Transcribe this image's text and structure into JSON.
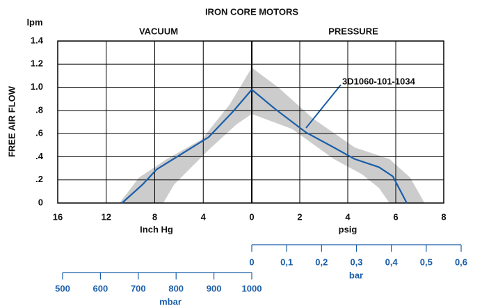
{
  "title": "IRON CORE MOTORS",
  "ylabel": "FREE AIR FLOW",
  "yunit": "lpm",
  "chart_data": [
    {
      "type": "line",
      "title": "VACUUM",
      "xlabel": "Inch Hg",
      "xlim": [
        16,
        0
      ],
      "xticks": [
        16,
        12,
        8,
        4,
        0
      ],
      "ylim": [
        0,
        1.4
      ],
      "yticks": [
        0,
        {
          "value": 0.2,
          "label": ".2"
        },
        {
          "value": 0.4,
          "label": ".4"
        },
        {
          "value": 0.6,
          "label": ".6"
        },
        {
          "value": 0.8,
          "label": ".8"
        },
        {
          "value": 1.0,
          "label": "1.0"
        },
        1.2,
        1.4
      ],
      "grid": true,
      "series": [
        {
          "color": "#1a5ea8",
          "x": [
            10.7,
            9.0,
            7.85,
            5.85,
            3.55,
            1.55,
            0
          ],
          "values": [
            0,
            0.16,
            0.29,
            0.42,
            0.57,
            0.79,
            0.98
          ]
        }
      ],
      "band": {
        "color": "#cccccc",
        "x": [
          10.9,
          9.3,
          7.0,
          4.13,
          1.83,
          0,
          0,
          1.26,
          3.55,
          6.4,
          7.3
        ],
        "values": [
          0,
          0.22,
          0.38,
          0.55,
          0.85,
          1.17,
          0.77,
          0.68,
          0.46,
          0.16,
          0
        ]
      }
    },
    {
      "type": "line",
      "title": "PRESSURE",
      "xlabel": "psig",
      "xlim": [
        0,
        8
      ],
      "xticks": [
        2,
        4,
        6,
        8
      ],
      "grid": true,
      "series": [
        {
          "name": "3D1060-101-1034",
          "color": "#1a5ea8",
          "x": [
            0,
            0.99,
            2.26,
            3.42,
            4.29,
            5.3,
            5.88,
            6.46
          ],
          "values": [
            0.98,
            0.81,
            0.61,
            0.48,
            0.38,
            0.31,
            0.23,
            0
          ]
        }
      ],
      "band": {
        "color": "#cccccc",
        "x": [
          0,
          1.1,
          2.55,
          4.29,
          5.74,
          6.6,
          7.2,
          5.74,
          5.3,
          4.58,
          3.42,
          1.68,
          0
        ],
        "values": [
          1.17,
          1.0,
          0.73,
          0.48,
          0.38,
          0.22,
          0,
          0,
          0.13,
          0.25,
          0.38,
          0.64,
          0.77
        ]
      }
    }
  ],
  "bar_scale": {
    "label": "bar",
    "color": "#1a5ea8",
    "lim": [
      0,
      0.6
    ],
    "ticks": [
      0,
      {
        "value": 0.1,
        "label": "0,1"
      },
      {
        "value": 0.2,
        "label": "0,2"
      },
      {
        "value": 0.3,
        "label": "0,3"
      },
      {
        "value": 0.4,
        "label": "0,4"
      },
      {
        "value": 0.5,
        "label": "0,5"
      },
      {
        "value": 0.6,
        "label": "0,6"
      }
    ]
  },
  "mbar_scale": {
    "label": "mbar",
    "color": "#1a5ea8",
    "lim": [
      500,
      1000
    ],
    "ticks": [
      500,
      600,
      700,
      800,
      900,
      1000
    ]
  }
}
